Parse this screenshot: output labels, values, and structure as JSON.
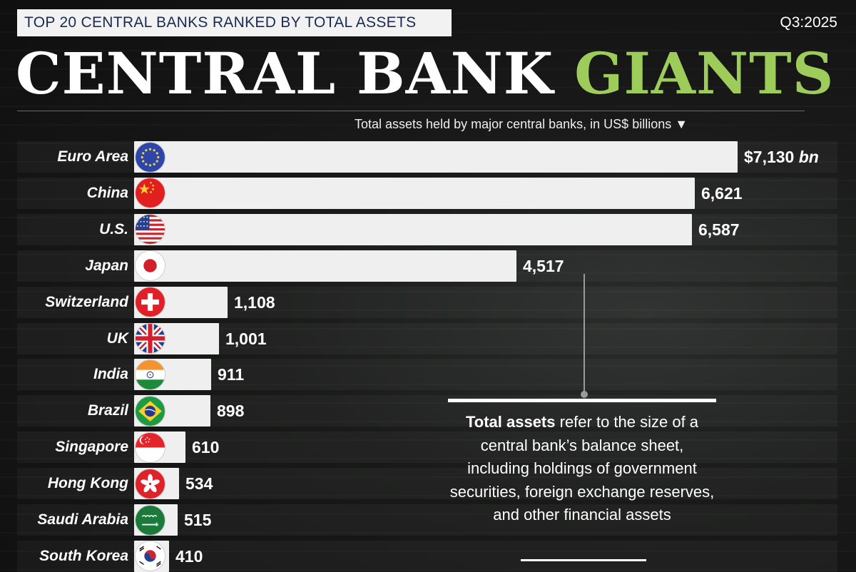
{
  "header": {
    "subtitle": "TOP 20 CENTRAL BANKS RANKED BY TOTAL ASSETS",
    "quarter": "Q3:2025",
    "headline_main": "CENTRAL BANK ",
    "headline_accent": "GIANTS"
  },
  "colors": {
    "accent": "#9dcc5a",
    "bar": "#efefef",
    "subtitle_text": "#1b2a4e",
    "background": "#141414"
  },
  "chart_data": {
    "type": "bar",
    "orientation": "horizontal",
    "title": "CENTRAL BANK GIANTS",
    "subtitle": "TOP 20 CENTRAL BANKS RANKED BY TOTAL ASSETS",
    "axis_label": "Total assets held by major central banks, in US$ billions ▼",
    "value_unit": "bn",
    "xlim": [
      0,
      7130
    ],
    "categories": [
      "Euro Area",
      "China",
      "U.S.",
      "Japan",
      "Switzerland",
      "UK",
      "India",
      "Brazil",
      "Singapore",
      "Hong Kong",
      "Saudi Arabia",
      "South Korea"
    ],
    "values": [
      7130,
      6621,
      6587,
      4517,
      1108,
      1001,
      911,
      898,
      610,
      534,
      515,
      410
    ],
    "value_labels": [
      "$7,130",
      "6,621",
      "6,587",
      "4,517",
      "1,108",
      "1,001",
      "911",
      "898",
      "610",
      "534",
      "515",
      "410"
    ],
    "flag_icons": [
      "eu-flag-icon",
      "china-flag-icon",
      "us-flag-icon",
      "japan-flag-icon",
      "switzerland-flag-icon",
      "uk-flag-icon",
      "india-flag-icon",
      "brazil-flag-icon",
      "singapore-flag-icon",
      "hong-kong-flag-icon",
      "saudi-arabia-flag-icon",
      "south-korea-flag-icon"
    ],
    "grid": false
  },
  "note": {
    "bold": "Total assets",
    "text": " refer to the size of a central bank’s balance sheet, including holdings of government securities, foreign exchange reserves, and other financial assets"
  }
}
